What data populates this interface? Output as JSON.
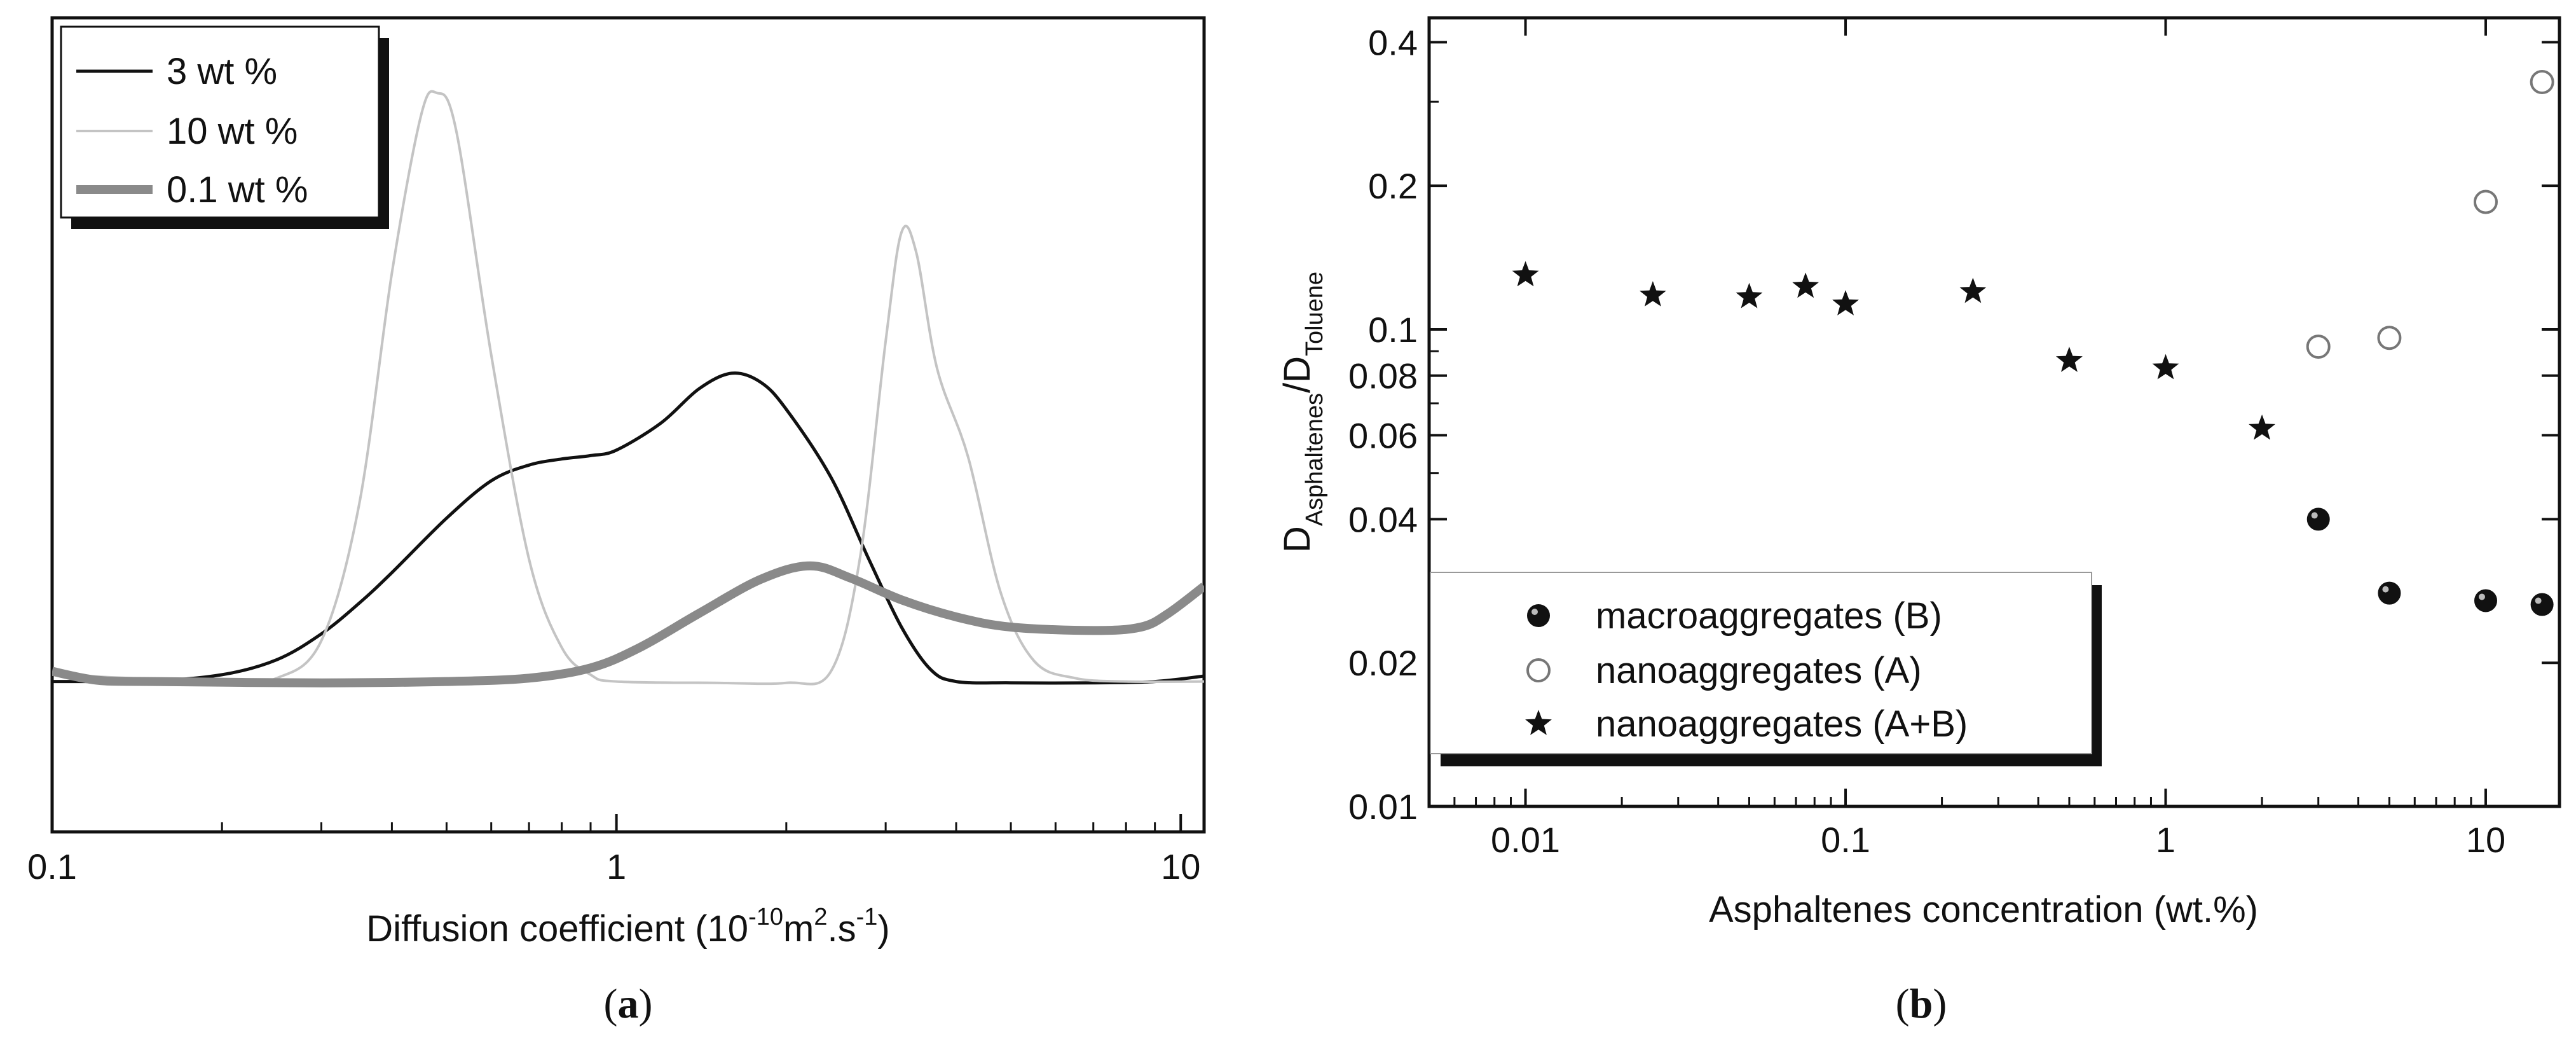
{
  "chart_data": [
    {
      "type": "line",
      "panel_label": "a",
      "xlabel_prefix": "Diffusion coefficient (10",
      "xlabel_exp": "-10",
      "xlabel_mid": "m",
      "xlabel_exp2": "2",
      "xlabel_suffix": ".s",
      "xlabel_exp3": "-1",
      "xlabel_end": ")",
      "ylabel": "",
      "xscale": "log",
      "xlim": [
        0.1,
        11
      ],
      "ylim": [
        0,
        1
      ],
      "x_ticks": [
        0.1,
        1,
        10
      ],
      "x_tick_labels": [
        "0.1",
        "1",
        "10"
      ],
      "legend_position": "top-left",
      "series": [
        {
          "name": "3 wt %",
          "color": "#111111",
          "width": 5,
          "points": [
            [
              0.1,
              0.12
            ],
            [
              0.15,
              0.121
            ],
            [
              0.2,
              0.13
            ],
            [
              0.25,
              0.152
            ],
            [
              0.3,
              0.19
            ],
            [
              0.35,
              0.235
            ],
            [
              0.4,
              0.28
            ],
            [
              0.5,
              0.36
            ],
            [
              0.6,
              0.415
            ],
            [
              0.7,
              0.438
            ],
            [
              0.8,
              0.447
            ],
            [
              0.9,
              0.452
            ],
            [
              1.0,
              0.46
            ],
            [
              1.2,
              0.5
            ],
            [
              1.4,
              0.55
            ],
            [
              1.6,
              0.573
            ],
            [
              1.8,
              0.56
            ],
            [
              2.0,
              0.52
            ],
            [
              2.4,
              0.42
            ],
            [
              2.8,
              0.3
            ],
            [
              3.2,
              0.2
            ],
            [
              3.6,
              0.138
            ],
            [
              4.0,
              0.12
            ],
            [
              5,
              0.118
            ],
            [
              7,
              0.118
            ],
            [
              9,
              0.12
            ],
            [
              11,
              0.128
            ]
          ]
        },
        {
          "name": "10 wt %",
          "color": "#c4c4c4",
          "width": 4,
          "points": [
            [
              0.1,
              0.13
            ],
            [
              0.2,
              0.12
            ],
            [
              0.25,
              0.125
            ],
            [
              0.3,
              0.18
            ],
            [
              0.35,
              0.38
            ],
            [
              0.4,
              0.72
            ],
            [
              0.45,
              0.95
            ],
            [
              0.48,
              0.985
            ],
            [
              0.52,
              0.93
            ],
            [
              0.6,
              0.6
            ],
            [
              0.7,
              0.3
            ],
            [
              0.8,
              0.17
            ],
            [
              0.9,
              0.13
            ],
            [
              1.0,
              0.12
            ],
            [
              1.5,
              0.118
            ],
            [
              2.0,
              0.118
            ],
            [
              2.4,
              0.135
            ],
            [
              2.7,
              0.3
            ],
            [
              3.0,
              0.62
            ],
            [
              3.2,
              0.78
            ],
            [
              3.4,
              0.75
            ],
            [
              3.7,
              0.58
            ],
            [
              4.2,
              0.45
            ],
            [
              4.8,
              0.25
            ],
            [
              5.5,
              0.15
            ],
            [
              6.5,
              0.125
            ],
            [
              8,
              0.12
            ],
            [
              11,
              0.12
            ]
          ]
        },
        {
          "name": "0.1 wt %",
          "color": "#8a8a8a",
          "width": 14,
          "points": [
            [
              0.1,
              0.135
            ],
            [
              0.12,
              0.122
            ],
            [
              0.15,
              0.12
            ],
            [
              0.3,
              0.118
            ],
            [
              0.5,
              0.12
            ],
            [
              0.7,
              0.125
            ],
            [
              0.9,
              0.14
            ],
            [
              1.1,
              0.17
            ],
            [
              1.4,
              0.22
            ],
            [
              1.8,
              0.27
            ],
            [
              2.2,
              0.29
            ],
            [
              2.6,
              0.272
            ],
            [
              3.2,
              0.24
            ],
            [
              4.0,
              0.215
            ],
            [
              5.0,
              0.2
            ],
            [
              7.0,
              0.195
            ],
            [
              8.5,
              0.2
            ],
            [
              9.5,
              0.22
            ],
            [
              11,
              0.26
            ]
          ]
        }
      ]
    },
    {
      "type": "scatter",
      "panel_label": "b",
      "xlabel": "Asphaltenes concentration (wt.%)",
      "ylabel_D": "D",
      "ylabel_sub1": "Asphaltenes",
      "ylabel_slash": "/D",
      "ylabel_sub2": "Toluene",
      "xscale": "log",
      "yscale": "log",
      "xlim": [
        0.005,
        17
      ],
      "ylim": [
        0.01,
        0.45
      ],
      "x_ticks": [
        0.01,
        0.1,
        1,
        10
      ],
      "x_tick_labels": [
        "0.01",
        "0.1",
        "1",
        "10"
      ],
      "y_ticks": [
        0.01,
        0.02,
        0.04,
        0.06,
        0.08,
        0.1,
        0.2,
        0.4
      ],
      "y_tick_labels": [
        "0.01",
        "0.02",
        "0.04",
        "0.06",
        "0.08",
        "0.1",
        "0.2",
        "0.4"
      ],
      "legend_position": "bottom-left",
      "series": [
        {
          "name": "macroaggregates (B)",
          "marker": "filled-circle",
          "x": [
            3,
            5,
            10,
            15
          ],
          "y": [
            0.04,
            0.028,
            0.027,
            0.0265
          ]
        },
        {
          "name": "nanoaggregates (A)",
          "marker": "open-circle",
          "x": [
            3,
            5,
            10,
            15
          ],
          "y": [
            0.092,
            0.096,
            0.185,
            0.33
          ]
        },
        {
          "name": "nanoaggregates (A+B)",
          "marker": "star",
          "x": [
            0.01,
            0.025,
            0.05,
            0.075,
            0.1,
            0.25,
            0.5,
            1,
            2
          ],
          "y": [
            0.13,
            0.118,
            0.117,
            0.123,
            0.113,
            0.12,
            0.086,
            0.083,
            0.062
          ]
        }
      ]
    }
  ],
  "captions": {
    "a": "a",
    "b": "b"
  }
}
